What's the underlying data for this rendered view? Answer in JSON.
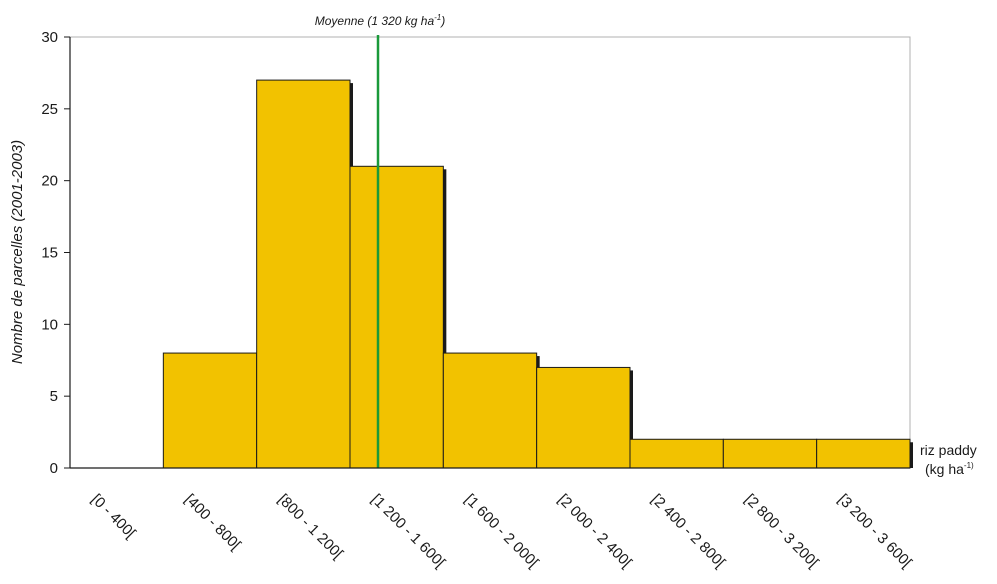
{
  "chart_data": {
    "type": "bar",
    "histogram": true,
    "categories": [
      "[0 - 400[",
      "[400 - 800[",
      "[800 - 1 200[",
      "[1 200 - 1 600[",
      "[1 600 - 2 000[",
      "[2 000 - 2 400[",
      "[2 400 - 2 800[",
      "[2 800 - 3 200[",
      "[3 200 - 3 600["
    ],
    "values": [
      0,
      8,
      27,
      21,
      8,
      7,
      2,
      2,
      2
    ],
    "ylabel": "Nombre de parcelles (2001-2003)",
    "xlabel": {
      "main": "riz paddy",
      "unit_base": "(kg ha",
      "unit_sup": "-1)"
    },
    "ylim": [
      0,
      30
    ],
    "yticks": [
      0,
      5,
      10,
      15,
      20,
      25,
      30
    ],
    "grid": false,
    "mean_line": {
      "value": 1320,
      "label_base": "Moyenne (1 320 kg ha",
      "label_sup": "-1",
      "label_end": ")",
      "color": "#1a9a3a"
    },
    "bar_color": "#f2c200",
    "bar_edge_color": "#1a1a1a"
  }
}
